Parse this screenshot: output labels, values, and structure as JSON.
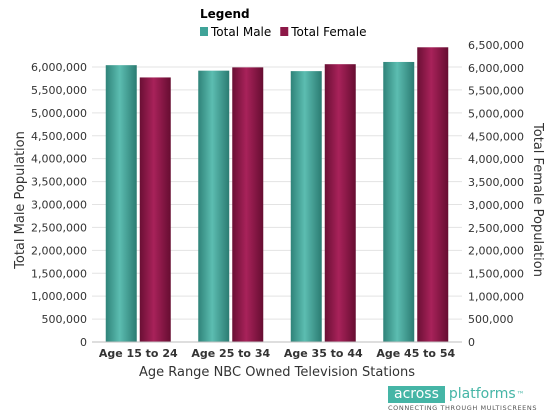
{
  "chart_data": {
    "type": "bar",
    "legend_title": "Legend",
    "legend_position": "top",
    "categories": [
      "Age 15 to 24",
      "Age 25 to 34",
      "Age 35 to 44",
      "Age 45 to 54"
    ],
    "series": [
      {
        "name": "Total Male",
        "axis": "left",
        "color": "#3fa398",
        "values": [
          6040000,
          5920000,
          5910000,
          6110000
        ]
      },
      {
        "name": "Total Female",
        "axis": "right",
        "color": "#8c1847",
        "values": [
          5790000,
          6010000,
          6080000,
          6450000
        ]
      }
    ],
    "xlabel": "Age Range NBC Owned Television Stations",
    "ylabel_left": "Total Male Population",
    "ylabel_right": "Total Female Population",
    "ylim_left": [
      0,
      6000000
    ],
    "ylim_right": [
      0,
      6500000
    ],
    "yticks_left": [
      0,
      500000,
      1000000,
      1500000,
      2000000,
      2500000,
      3000000,
      3500000,
      4000000,
      4500000,
      5000000,
      5500000,
      6000000
    ],
    "yticks_right": [
      0,
      500000,
      1000000,
      1500000,
      2000000,
      2500000,
      3000000,
      3500000,
      4000000,
      4500000,
      5000000,
      5500000,
      6000000,
      6500000
    ],
    "grid": true
  },
  "branding": {
    "word1": "across",
    "word2": "platforms",
    "tm": "™",
    "tagline": "CONNECTING THROUGH MULTISCREENS"
  }
}
